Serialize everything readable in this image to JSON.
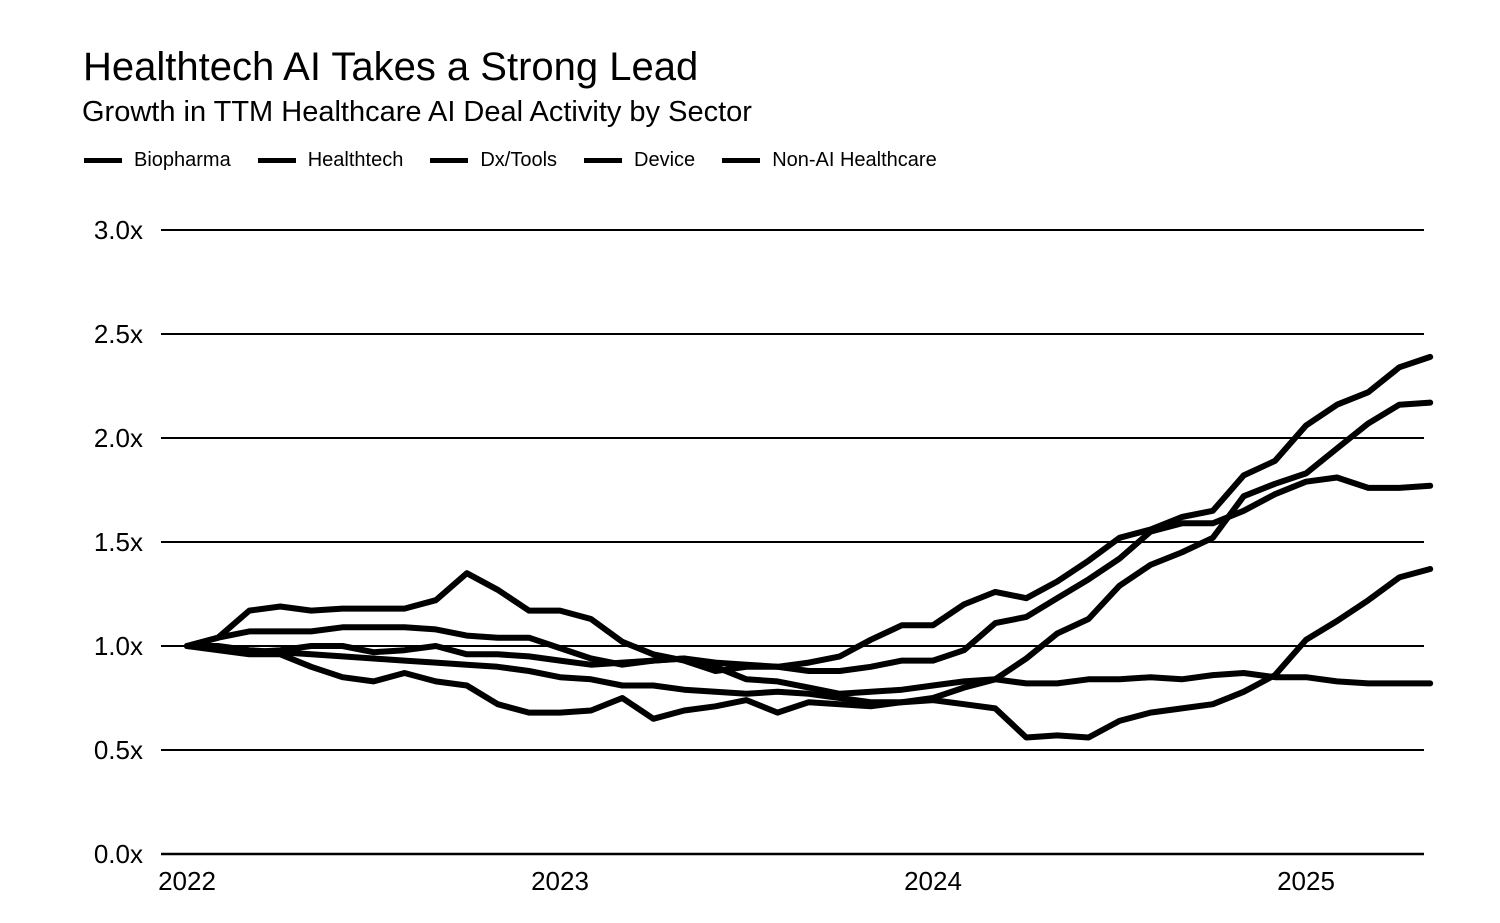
{
  "title": "Healthtech AI Takes a Strong Lead",
  "subtitle": "Growth in TTM Healthcare AI Deal Activity by Sector",
  "legend": [
    "Biopharma",
    "Healthtech",
    "Dx/Tools",
    "Device",
    "Non-AI Healthcare"
  ],
  "chart_data": {
    "type": "line",
    "title": "Healthtech AI Takes a Strong Lead",
    "subtitle": "Growth in TTM Healthcare AI Deal Activity by Sector",
    "xlabel": "",
    "ylabel": "",
    "ylim": [
      0,
      3.0
    ],
    "xlim": [
      2022.0,
      2025.38
    ],
    "y_ticks": [
      0.0,
      0.5,
      1.0,
      1.5,
      2.0,
      2.5,
      3.0
    ],
    "y_tick_labels": [
      "0.0x",
      "0.5x",
      "1.0x",
      "1.5x",
      "2.0x",
      "2.5x",
      "3.0x"
    ],
    "x_ticks": [
      2022,
      2023,
      2024,
      2025
    ],
    "x_tick_labels": [
      "2022",
      "2023",
      "2024",
      "2025"
    ],
    "grid": true,
    "legend_position": "top-left",
    "colors": [
      "#000000"
    ],
    "x": [
      2022.0,
      2022.083,
      2022.167,
      2022.25,
      2022.333,
      2022.417,
      2022.5,
      2022.583,
      2022.667,
      2022.75,
      2022.833,
      2022.917,
      2023.0,
      2023.083,
      2023.167,
      2023.25,
      2023.333,
      2023.417,
      2023.5,
      2023.583,
      2023.667,
      2023.75,
      2023.833,
      2023.917,
      2024.0,
      2024.083,
      2024.167,
      2024.25,
      2024.333,
      2024.417,
      2024.5,
      2024.583,
      2024.667,
      2024.75,
      2024.833,
      2024.917,
      2025.0,
      2025.083,
      2025.167,
      2025.25,
      2025.333
    ],
    "series": [
      {
        "name": "Biopharma",
        "values": [
          1.0,
          1.0,
          0.98,
          0.97,
          0.96,
          0.95,
          0.94,
          0.93,
          0.92,
          0.91,
          0.9,
          0.88,
          0.85,
          0.84,
          0.81,
          0.81,
          0.79,
          0.78,
          0.77,
          0.78,
          0.77,
          0.75,
          0.73,
          0.73,
          0.75,
          0.8,
          0.84,
          0.94,
          1.06,
          1.13,
          1.29,
          1.39,
          1.45,
          1.52,
          1.72,
          1.78,
          1.83,
          1.95,
          2.07,
          2.16,
          2.17
        ]
      },
      {
        "name": "Healthtech",
        "values": [
          1.0,
          1.04,
          1.17,
          1.19,
          1.17,
          1.18,
          1.18,
          1.18,
          1.22,
          1.35,
          1.27,
          1.17,
          1.17,
          1.13,
          1.02,
          0.96,
          0.93,
          0.88,
          0.9,
          0.9,
          0.92,
          0.95,
          1.03,
          1.1,
          1.1,
          1.2,
          1.26,
          1.23,
          1.31,
          1.41,
          1.52,
          1.56,
          1.62,
          1.65,
          1.82,
          1.89,
          2.06,
          2.16,
          2.22,
          2.34,
          2.39
        ]
      },
      {
        "name": "Dx/Tools",
        "values": [
          1.0,
          1.04,
          1.07,
          1.07,
          1.07,
          1.09,
          1.09,
          1.09,
          1.08,
          1.05,
          1.04,
          1.04,
          0.99,
          0.94,
          0.91,
          0.93,
          0.94,
          0.92,
          0.91,
          0.9,
          0.88,
          0.88,
          0.9,
          0.93,
          0.93,
          0.98,
          1.11,
          1.14,
          1.23,
          1.32,
          1.42,
          1.55,
          1.59,
          1.59,
          1.65,
          1.73,
          1.79,
          1.81,
          1.76,
          1.76,
          1.77
        ]
      },
      {
        "name": "Device",
        "values": [
          1.0,
          0.98,
          0.96,
          0.96,
          0.9,
          0.85,
          0.83,
          0.87,
          0.83,
          0.81,
          0.72,
          0.68,
          0.68,
          0.69,
          0.75,
          0.65,
          0.69,
          0.71,
          0.74,
          0.68,
          0.73,
          0.72,
          0.71,
          0.73,
          0.74,
          0.72,
          0.7,
          0.56,
          0.57,
          0.56,
          0.64,
          0.68,
          0.7,
          0.72,
          0.78,
          0.86,
          1.03,
          1.12,
          1.22,
          1.33,
          1.37
        ]
      },
      {
        "name": "Non-AI Healthcare",
        "values": [
          1.0,
          0.99,
          0.97,
          0.98,
          1.0,
          1.0,
          0.97,
          0.98,
          1.0,
          0.96,
          0.96,
          0.95,
          0.93,
          0.91,
          0.92,
          0.93,
          0.94,
          0.9,
          0.84,
          0.83,
          0.8,
          0.77,
          0.78,
          0.79,
          0.81,
          0.83,
          0.84,
          0.82,
          0.82,
          0.84,
          0.84,
          0.85,
          0.84,
          0.86,
          0.87,
          0.85,
          0.85,
          0.83,
          0.82,
          0.82,
          0.82
        ]
      }
    ]
  }
}
